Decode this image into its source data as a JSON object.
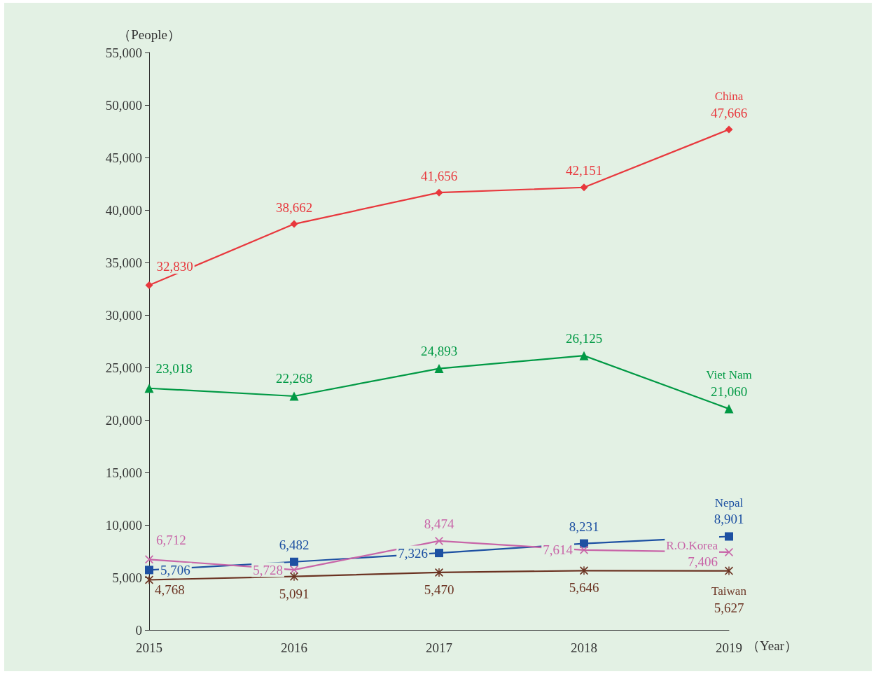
{
  "chart_data": {
    "type": "line",
    "categories": [
      "2015",
      "2016",
      "2017",
      "2018",
      "2019"
    ],
    "xlabel": "（Year）",
    "ylabel": "（People）",
    "ylim": [
      0,
      55000
    ],
    "yticks": [
      0,
      {
        "value": 5000,
        "label": "5,000"
      },
      {
        "value": 10000,
        "label": "10,000"
      },
      {
        "value": 15000,
        "label": "15,000"
      },
      {
        "value": 20000,
        "label": "20,000"
      },
      {
        "value": 25000,
        "label": "25,000"
      },
      {
        "value": 30000,
        "label": "30,000"
      },
      {
        "value": 35000,
        "label": "35,000"
      },
      {
        "value": 40000,
        "label": "40,000"
      },
      {
        "value": 45000,
        "label": "45,000"
      },
      {
        "value": 50000,
        "label": "50,000"
      },
      {
        "value": 55000,
        "label": "55,000"
      }
    ],
    "grid": false,
    "legend": false,
    "data_labels": true,
    "line_style": "solid",
    "series": [
      {
        "name": "China",
        "color": "#e8383d",
        "marker": "diamond",
        "values": [
          32830,
          38662,
          41656,
          42151,
          47666
        ],
        "value_labels": [
          "32,830",
          "38,662",
          "41,656",
          "42,151",
          "47,666"
        ]
      },
      {
        "name": "Viet Nam",
        "color": "#009944",
        "marker": "triangle",
        "values": [
          23018,
          22268,
          24893,
          26125,
          21060
        ],
        "value_labels": [
          "23,018",
          "22,268",
          "24,893",
          "26,125",
          "21,060"
        ]
      },
      {
        "name": "Nepal",
        "color": "#1d50a2",
        "marker": "square",
        "values": [
          5706,
          6482,
          7326,
          8231,
          8901
        ],
        "value_labels": [
          "5,706",
          "6,482",
          "7,326",
          "8,231",
          "8,901"
        ]
      },
      {
        "name": "R.O.Korea",
        "color": "#c865a8",
        "marker": "cross",
        "values": [
          6712,
          5728,
          8474,
          7614,
          7406
        ],
        "value_labels": [
          "6,712",
          "5,728",
          "8,474",
          "7,614",
          "7,406"
        ]
      },
      {
        "name": "Taiwan",
        "color": "#6b3322",
        "marker": "star",
        "values": [
          4768,
          5091,
          5470,
          5646,
          5627
        ],
        "value_labels": [
          "4,768",
          "5,091",
          "5,470",
          "5,646",
          "5,627"
        ]
      }
    ]
  }
}
